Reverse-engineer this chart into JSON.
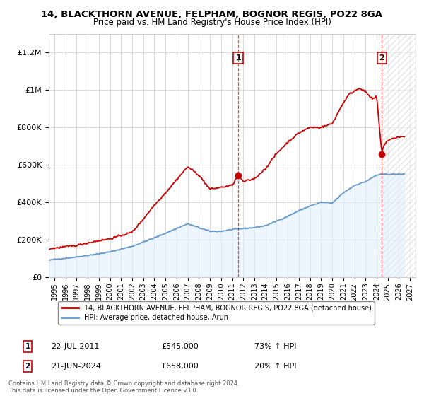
{
  "title_line1": "14, BLACKTHORN AVENUE, FELPHAM, BOGNOR REGIS, PO22 8GA",
  "title_line2": "Price paid vs. HM Land Registry's House Price Index (HPI)",
  "ylabel_ticks": [
    "£0",
    "£200K",
    "£400K",
    "£600K",
    "£800K",
    "£1M",
    "£1.2M"
  ],
  "ytick_values": [
    0,
    200000,
    400000,
    600000,
    800000,
    1000000,
    1200000
  ],
  "ylim": [
    0,
    1300000
  ],
  "xlim_start": 1994.5,
  "xlim_end": 2027.5,
  "xticks": [
    1995,
    1996,
    1997,
    1998,
    1999,
    2000,
    2001,
    2002,
    2003,
    2004,
    2005,
    2006,
    2007,
    2008,
    2009,
    2010,
    2011,
    2012,
    2013,
    2014,
    2015,
    2016,
    2017,
    2018,
    2019,
    2020,
    2021,
    2022,
    2023,
    2024,
    2025,
    2026,
    2027
  ],
  "legend_line1": "14, BLACKTHORN AVENUE, FELPHAM, BOGNOR REGIS, PO22 8GA (detached house)",
  "legend_line2": "HPI: Average price, detached house, Arun",
  "sale1_date": "22-JUL-2011",
  "sale1_price": "£545,000",
  "sale1_hpi": "73% ↑ HPI",
  "sale1_year": 2011.55,
  "sale1_value": 545000,
  "sale2_date": "21-JUN-2024",
  "sale2_price": "£658,000",
  "sale2_hpi": "20% ↑ HPI",
  "sale2_year": 2024.47,
  "sale2_value": 658000,
  "red_color": "#cc0000",
  "blue_color": "#6699cc",
  "blue_fill": "#ddeeff",
  "background_color": "#ffffff",
  "grid_color": "#cccccc",
  "hatch_start": 2024.47,
  "footer_text": "Contains HM Land Registry data © Crown copyright and database right 2024.\nThis data is licensed under the Open Government Licence v3.0."
}
